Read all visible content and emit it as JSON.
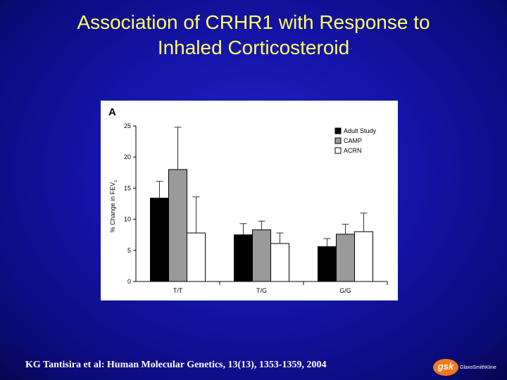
{
  "slide": {
    "title_line1": "Association of CRHR1 with Response to",
    "title_line2": "Inhaled Corticosteroid",
    "citation": "KG Tantisira et al:  Human Molecular Genetics, 13(13), 1353-1359, 2004",
    "logo_mark": "gsk",
    "logo_word": "GlaxoSmithKline",
    "colors": {
      "background": "#1a1aa8",
      "title": "#ffff66",
      "logo": "#f27a1a"
    }
  },
  "chart_data": {
    "type": "bar",
    "panel_label": "A",
    "ylabel": "% Change in FEV",
    "ylabel_subscript": "1",
    "ylim": [
      0,
      25
    ],
    "yticks": [
      "0",
      "5",
      "10",
      "15",
      "20",
      "25"
    ],
    "categories": [
      "T/T",
      "T/G",
      "G/G"
    ],
    "legend_position": "top-right",
    "grid": false,
    "series": [
      {
        "name": "Adult Study",
        "color": "#000000",
        "values": [
          13.4,
          7.5,
          5.6
        ],
        "error": [
          2.7,
          1.8,
          1.3
        ]
      },
      {
        "name": "CAMP",
        "color": "#9a9a9a",
        "values": [
          18.0,
          8.3,
          7.6
        ],
        "error": [
          6.8,
          1.4,
          1.6
        ]
      },
      {
        "name": "ACRN",
        "color": "#ffffff",
        "values": [
          7.8,
          6.1,
          8.0
        ],
        "error": [
          5.8,
          1.7,
          3.0
        ]
      }
    ]
  }
}
